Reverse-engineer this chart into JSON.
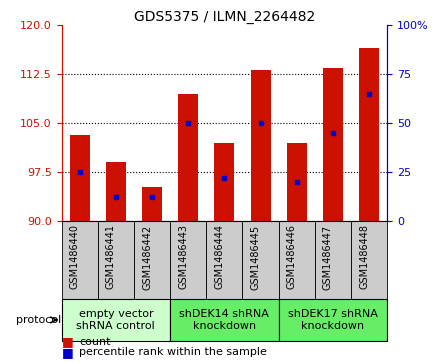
{
  "title": "GDS5375 / ILMN_2264482",
  "samples": [
    "GSM1486440",
    "GSM1486441",
    "GSM1486442",
    "GSM1486443",
    "GSM1486444",
    "GSM1486445",
    "GSM1486446",
    "GSM1486447",
    "GSM1486448"
  ],
  "bar_tops": [
    103.2,
    99.0,
    95.2,
    109.5,
    102.0,
    113.2,
    102.0,
    113.5,
    116.5
  ],
  "bar_bottom": 90,
  "percentile_ranks": [
    25,
    12,
    12,
    50,
    22,
    50,
    20,
    45,
    65
  ],
  "ylim_left": [
    90,
    120
  ],
  "ylim_right": [
    0,
    100
  ],
  "yticks_left": [
    90,
    97.5,
    105,
    112.5,
    120
  ],
  "yticks_right": [
    0,
    25,
    50,
    75,
    100
  ],
  "bar_color": "#cc1100",
  "dot_color": "#0000cc",
  "bar_width": 0.55,
  "groups": [
    {
      "label": "empty vector\nshRNA control",
      "start": 0,
      "end": 3,
      "color": "#ccffcc"
    },
    {
      "label": "shDEK14 shRNA\nknockdown",
      "start": 3,
      "end": 6,
      "color": "#66ee66"
    },
    {
      "label": "shDEK17 shRNA\nknockdown",
      "start": 6,
      "end": 9,
      "color": "#66ee66"
    }
  ],
  "legend_items": [
    {
      "label": "count",
      "color": "#cc1100"
    },
    {
      "label": "percentile rank within the sample",
      "color": "#0000cc"
    }
  ],
  "protocol_label": "protocol",
  "left_axis_color": "#cc1100",
  "right_axis_color": "#0000cc",
  "tick_box_color": "#cccccc",
  "background_color": "#ffffff",
  "title_fontsize": 10,
  "tick_label_fontsize": 7,
  "legend_fontsize": 8,
  "group_label_fontsize": 8
}
